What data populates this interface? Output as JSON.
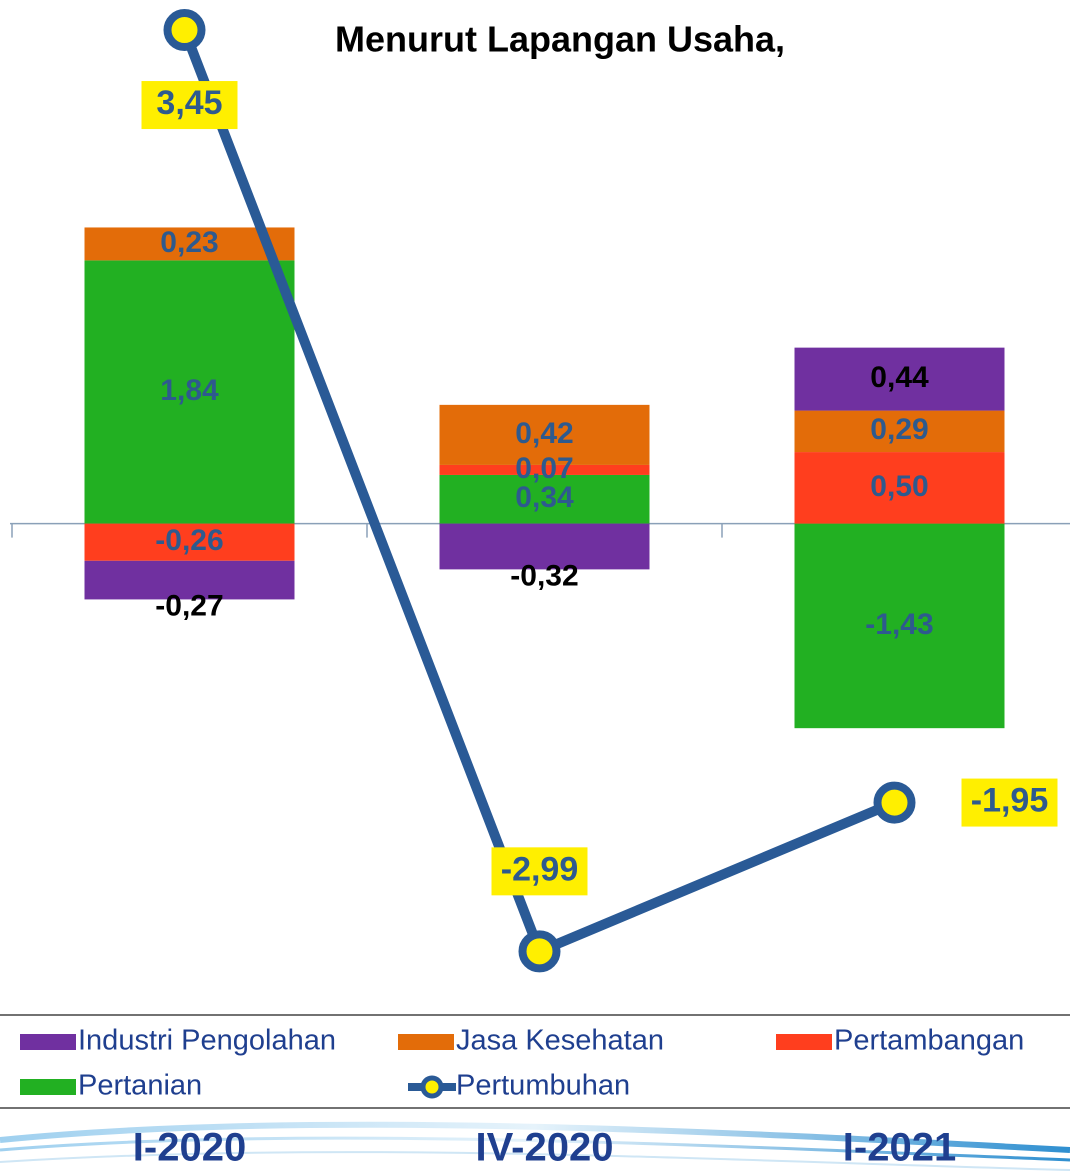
{
  "chart_data": {
    "type": "bar",
    "stacked": true,
    "title": "Menurut Lapangan Usaha,",
    "categories": [
      "I-2020",
      "IV-2020",
      "I-2021"
    ],
    "ylim": [
      -3.4,
      3.66
    ],
    "series": [
      {
        "name": "Industri Pengolahan",
        "color": "#7030a0",
        "values": [
          -0.27,
          -0.32,
          0.44
        ],
        "value_labels": [
          "-0,27",
          "-0,32",
          "0,44"
        ]
      },
      {
        "name": "Jasa Kesehatan",
        "color": "#e36c09",
        "values": [
          0.23,
          0.42,
          0.29
        ],
        "value_labels": [
          "0,23",
          "0,42",
          "0,29"
        ]
      },
      {
        "name": "Pertambangan",
        "color": "#ff3e1e",
        "values": [
          -0.26,
          0.07,
          0.5
        ],
        "value_labels": [
          "-0,26",
          "0,07",
          "0,50"
        ]
      },
      {
        "name": "Pertanian",
        "color": "#22b022",
        "values": [
          1.84,
          0.34,
          -1.43
        ],
        "value_labels": [
          "1,84",
          "0,34",
          "-1,43"
        ]
      },
      {
        "name": "Pertumbuhan",
        "type": "line",
        "color": "#2a5a96",
        "marker_color": "#ffef00",
        "values": [
          3.45,
          -2.99,
          -1.95
        ],
        "value_labels": [
          "3,45",
          "-2,99",
          "-1,95"
        ]
      }
    ]
  }
}
